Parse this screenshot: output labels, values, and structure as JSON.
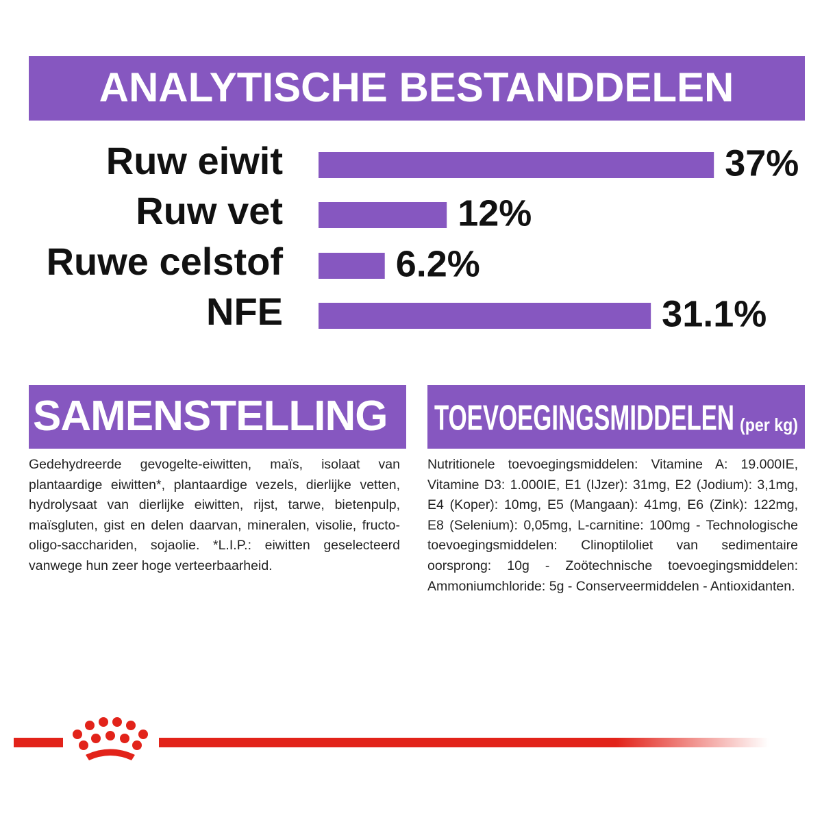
{
  "chart_data": {
    "type": "bar",
    "orientation": "horizontal",
    "title": "ANALYTISCHE BESTANDDELEN",
    "categories": [
      "Ruw eiwit",
      "Ruw vet",
      "Ruwe celstof",
      "NFE"
    ],
    "values": [
      37,
      12,
      6.2,
      31.1
    ],
    "value_labels": [
      "37%",
      "12%",
      "6.2%",
      "31.1%"
    ],
    "color": "#8657c0"
  },
  "composition": {
    "title": "SAMENSTELLING",
    "text": "Gedehydreerde gevogelte-eiwitten, maïs, isolaat van plantaardige eiwitten*, plantaardige vezels, dierlijke vetten, hydrolysaat van dierlijke eiwitten, rijst, tarwe, bietenpulp, maïsgluten, gist en delen daarvan, mineralen, visolie, fructo-oligo-sacchariden, sojaolie. *L.I.P.: eiwitten geselecteerd vanwege hun zeer hoge verteerbaarheid."
  },
  "additives": {
    "title": "TOEVOEGINGSMIDDELEN",
    "unit": "(per kg)",
    "text": "Nutritionele toevoegingsmiddelen: Vitamine A: 19.000IE, Vitamine D3: 1.000IE, E1 (IJzer): 31mg, E2 (Jodium): 3,1mg, E4 (Koper): 10mg, E5 (Mangaan): 41mg, E6 (Zink): 122mg, E8 (Selenium): 0,05mg, L-carnitine: 100mg - Technologische toevoegingsmiddelen: Clinoptiloliet van sedimentaire oorsprong: 10g - Zoötechnische toevoegingsmiddelen: Ammoniumchloride: 5g - Conserveermiddelen - Antioxidanten."
  }
}
